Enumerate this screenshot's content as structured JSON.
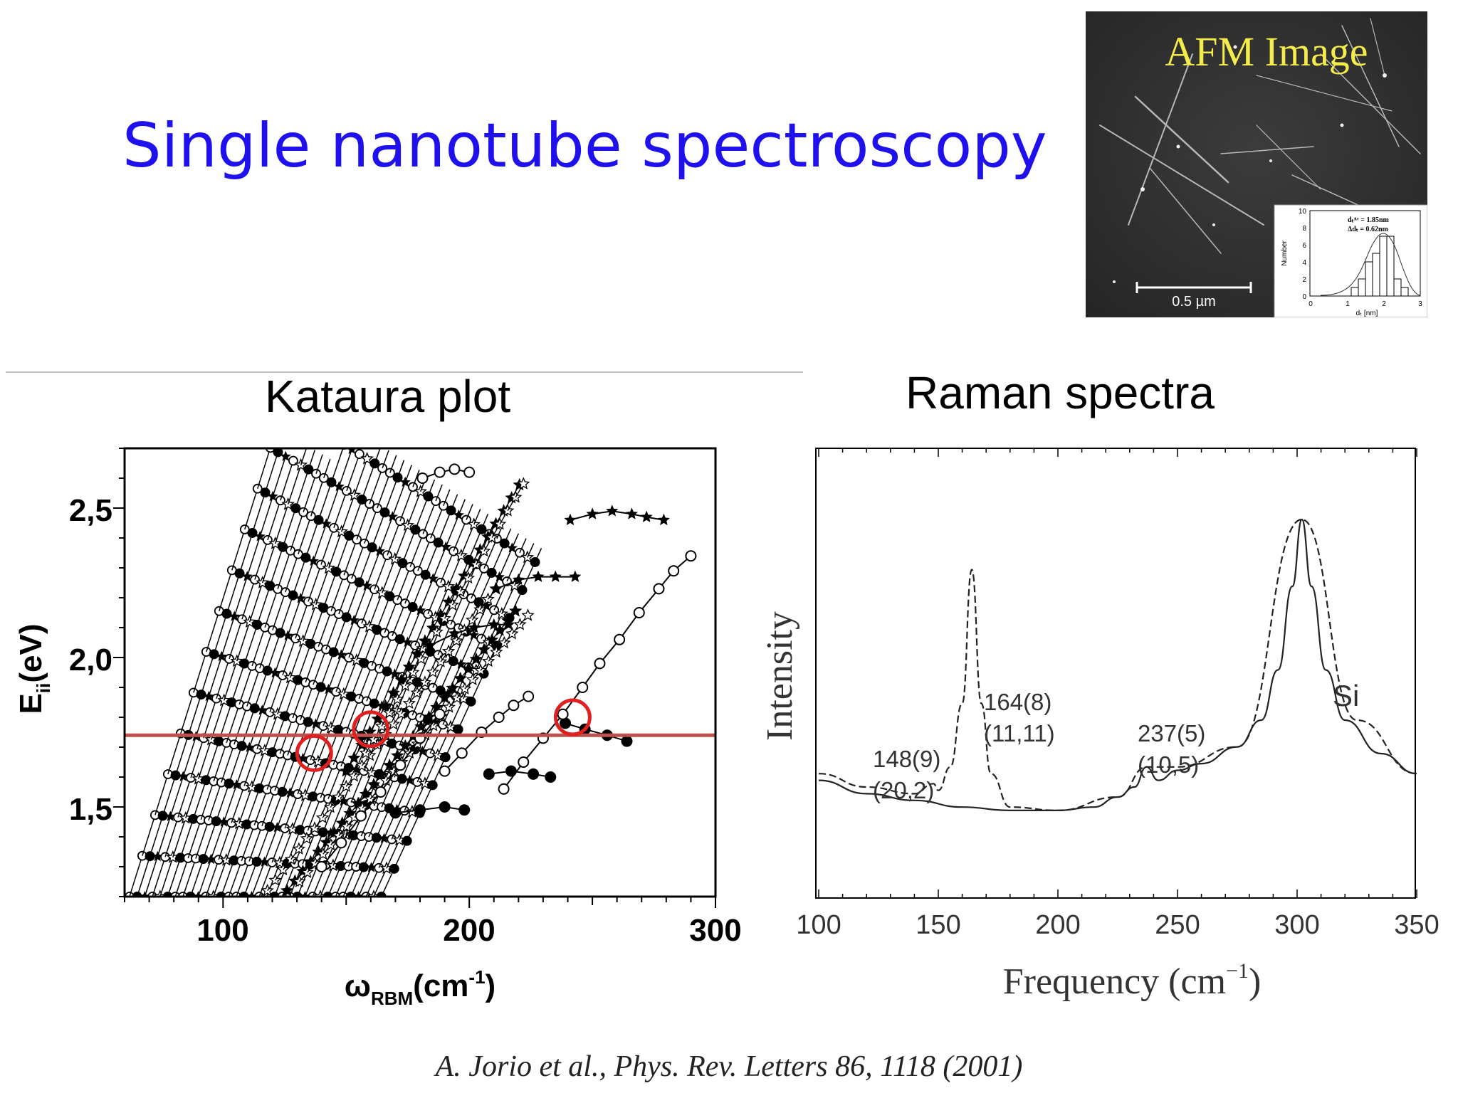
{
  "slide": {
    "title": "Single nanotube spectroscopy",
    "citation": "A. Jorio et al., Phys. Rev. Letters 86, 1118 (2001)"
  },
  "afm_panel": {
    "label": "AFM Image",
    "scale_bar_text": "0.5 µm",
    "inset": {
      "ylabel": "Number",
      "xlabel": "dₜ [nm]",
      "legend_line1": "dₜᴬᵛ = 1.85nm",
      "legend_line2": "Δdₜ = 0.62nm",
      "y_ticks": [
        "10",
        "8",
        "6",
        "4",
        "2",
        "0"
      ],
      "x_ticks": [
        "0",
        "1",
        "2",
        "3"
      ]
    }
  },
  "kataura": {
    "heading": "Kataura plot",
    "x_ticks": [
      "100",
      "200",
      "300"
    ],
    "y_ticks": [
      "2,5",
      "2,0",
      "1,5"
    ],
    "xlabel_main": "ω",
    "xlabel_sub": "RBM",
    "xlabel_rest": "(cm",
    "xlabel_sup": "-1",
    "xlabel_close": ")",
    "ylabel_main": "E",
    "ylabel_sub": "ii",
    "ylabel_rest": "(eV)",
    "laser_color": "#c0504d",
    "circle_color": "#e02020"
  },
  "raman": {
    "heading": "Raman spectra",
    "xlabel": "Frequency (cm",
    "xlabel_sup": "−1",
    "xlabel_close": ")",
    "ylabel": "Intensity",
    "x_ticks": [
      "100",
      "150",
      "200",
      "250",
      "300",
      "350"
    ],
    "annotations": {
      "p148_a": "148(9)",
      "p148_b": "(20,2)",
      "p164_a": "164(8)",
      "p164_b": "(11,11)",
      "p237_a": "237(5)",
      "p237_b": "(10,5)",
      "si": "Si"
    }
  },
  "chart_data": [
    {
      "type": "scatter",
      "title": "Kataura plot",
      "xlabel": "ωRBM(cm-1)",
      "ylabel": "Eii(eV)",
      "xlim": [
        60,
        300
      ],
      "ylim": [
        1.2,
        2.7
      ],
      "x_ticks": [
        100,
        200,
        300
      ],
      "y_ticks": [
        1.5,
        2.0,
        2.5
      ],
      "reference_line": {
        "y": 1.74
      },
      "highlighted_points": [
        {
          "x": 137,
          "y": 1.68
        },
        {
          "x": 160,
          "y": 1.76
        },
        {
          "x": 242,
          "y": 1.8
        }
      ],
      "series": [
        {
          "marker": "open-circle",
          "points": [
            [
              181,
              2.6
            ],
            [
              188,
              2.62
            ],
            [
              194,
              2.63
            ],
            [
              200,
              2.62
            ]
          ]
        },
        {
          "marker": "filled-star",
          "points": [
            [
              241,
              2.46
            ],
            [
              250,
              2.48
            ],
            [
              258,
              2.49
            ],
            [
              266,
              2.48
            ],
            [
              272,
              2.47
            ],
            [
              279,
              2.46
            ]
          ]
        },
        {
          "marker": "filled-star",
          "points": [
            [
              211,
              2.23
            ],
            [
              220,
              2.26
            ],
            [
              228,
              2.27
            ],
            [
              235,
              2.27
            ],
            [
              243,
              2.27
            ]
          ]
        },
        {
          "marker": "filled-star",
          "points": [
            [
              184,
              2.04
            ],
            [
              194,
              2.08
            ],
            [
              202,
              2.1
            ],
            [
              210,
              2.11
            ],
            [
              216,
              2.11
            ]
          ]
        },
        {
          "marker": "filled-circle",
          "points": [
            [
              239,
              1.78
            ],
            [
              247,
              1.76
            ],
            [
              256,
              1.74
            ],
            [
              264,
              1.72
            ]
          ]
        },
        {
          "marker": "filled-circle",
          "points": [
            [
              208,
              1.61
            ],
            [
              217,
              1.62
            ],
            [
              226,
              1.61
            ],
            [
              233,
              1.6
            ]
          ]
        },
        {
          "marker": "filled-circle",
          "points": [
            [
              170,
              1.48
            ],
            [
              180,
              1.49
            ],
            [
              190,
              1.5
            ],
            [
              198,
              1.49
            ]
          ]
        },
        {
          "marker": "open-circle",
          "points": [
            [
              214,
              1.56
            ],
            [
              222,
              1.65
            ],
            [
              230,
              1.73
            ],
            [
              238,
              1.81
            ],
            [
              246,
              1.9
            ],
            [
              253,
              1.98
            ],
            [
              261,
              2.06
            ],
            [
              269,
              2.15
            ],
            [
              277,
              2.23
            ],
            [
              283,
              2.29
            ],
            [
              290,
              2.34
            ]
          ]
        },
        {
          "marker": "open-circle",
          "points": [
            [
              190,
              1.62
            ],
            [
              197,
              1.68
            ],
            [
              205,
              1.75
            ],
            [
              212,
              1.8
            ],
            [
              218,
              1.84
            ],
            [
              224,
              1.87
            ]
          ]
        },
        {
          "marker": "open-circle",
          "points": [
            [
              140,
              1.3
            ],
            [
              148,
              1.38
            ],
            [
              156,
              1.47
            ],
            [
              164,
              1.55
            ],
            [
              172,
              1.64
            ],
            [
              180,
              1.73
            ],
            [
              188,
              1.81
            ]
          ]
        }
      ]
    },
    {
      "type": "line",
      "title": "Raman spectra",
      "xlabel": "Frequency (cm−1)",
      "ylabel": "Intensity",
      "xlim": [
        100,
        350
      ],
      "x_ticks": [
        100,
        150,
        200,
        250,
        300,
        350
      ],
      "peaks": [
        {
          "x": 148,
          "label": "148(9)",
          "assignment": "(20,2)"
        },
        {
          "x": 164,
          "label": "164(8)",
          "assignment": "(11,11)"
        },
        {
          "x": 237,
          "label": "237(5)",
          "assignment": "(10,5)"
        },
        {
          "x": 302,
          "label": "Si"
        }
      ],
      "series": [
        {
          "style": "solid",
          "x": [
            100,
            120,
            140,
            160,
            180,
            200,
            215,
            225,
            232,
            237,
            242,
            250,
            260,
            275,
            285,
            292,
            298,
            302,
            306,
            312,
            320,
            335,
            350
          ],
          "y": [
            0.22,
            0.18,
            0.16,
            0.14,
            0.13,
            0.13,
            0.14,
            0.17,
            0.2,
            0.26,
            0.22,
            0.25,
            0.27,
            0.32,
            0.4,
            0.55,
            0.8,
            1.0,
            0.8,
            0.55,
            0.4,
            0.3,
            0.24
          ]
        },
        {
          "style": "dashed",
          "x": [
            100,
            120,
            140,
            148,
            150,
            155,
            160,
            164,
            168,
            172,
            180,
            200,
            225,
            237,
            250,
            275,
            302,
            325,
            350
          ],
          "y": [
            0.24,
            0.2,
            0.18,
            0.21,
            0.19,
            0.26,
            0.45,
            0.85,
            0.45,
            0.24,
            0.14,
            0.13,
            0.17,
            0.26,
            0.26,
            0.32,
            1.0,
            0.4,
            0.24
          ]
        }
      ]
    }
  ]
}
